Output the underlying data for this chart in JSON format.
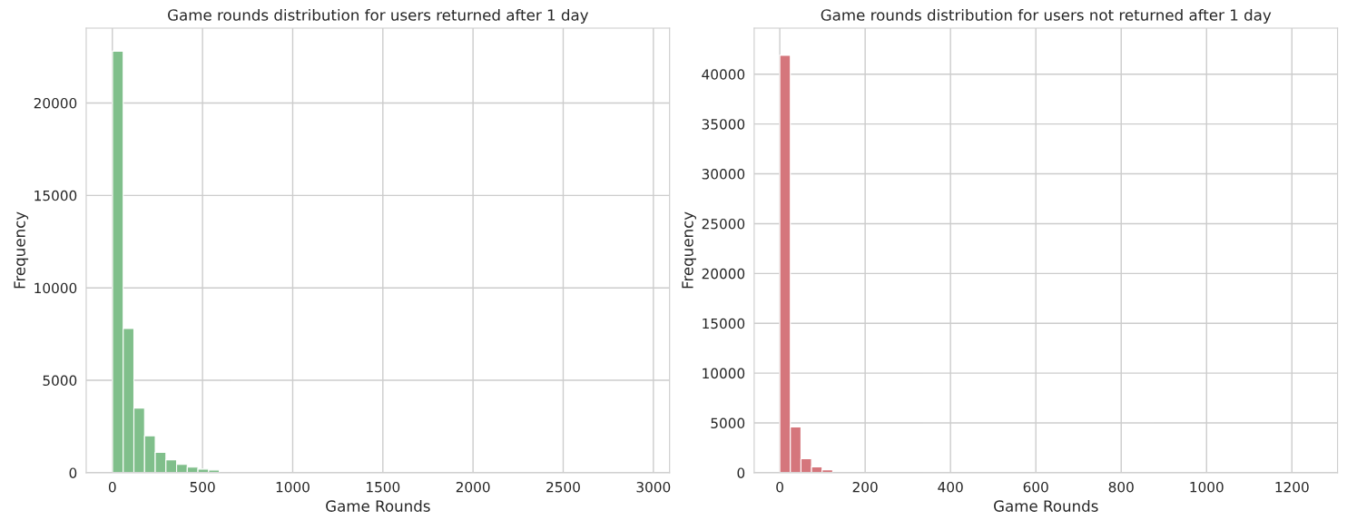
{
  "chart_data": [
    {
      "type": "histogram",
      "title": "Game rounds distribution for users returned after 1 day",
      "xlabel": "Game Rounds",
      "ylabel": "Frequency",
      "color": "#80bf8b",
      "bins": [
        1,
        60.2,
        119.4,
        178.6,
        237.8,
        297,
        356.2,
        415.4,
        474.6,
        533.8,
        593,
        652.2,
        711.4,
        770.6,
        829.8,
        889,
        948.2,
        1007.4,
        1066.6,
        1125.8,
        1185,
        1244.2,
        1303.4,
        1362.6,
        1421.8,
        1481,
        1540.2,
        1599.4,
        1658.6,
        1717.8,
        1777,
        1836.2,
        1895.4,
        1954.6,
        2013.8,
        2073,
        2132.2,
        2191.4,
        2250.6,
        2309.8,
        2369,
        2428.2,
        2487.4,
        2546.6,
        2605.8,
        2665,
        2724.2,
        2783.4,
        2842.6,
        2901.8,
        2961
      ],
      "values": [
        22800,
        7800,
        3500,
        2000,
        1100,
        700,
        450,
        300,
        200,
        150,
        null,
        null,
        0,
        0,
        0,
        0,
        0,
        0,
        0,
        0,
        0,
        0,
        0,
        0,
        0,
        0,
        0,
        0,
        0,
        0,
        0,
        0,
        0,
        0,
        0,
        0,
        0,
        0,
        0,
        0,
        0,
        0,
        0,
        0,
        0,
        0,
        0,
        0,
        0,
        0
      ],
      "xlim": [
        -145,
        3090
      ],
      "ylim": [
        0,
        24050
      ],
      "xticks": [
        0,
        500,
        1000,
        1500,
        2000,
        2500,
        3000
      ],
      "yticks": [
        0,
        5000,
        10000,
        15000,
        20000
      ],
      "grid": true
    },
    {
      "type": "histogram",
      "title": "Game rounds distribution for users not returned after 1 day",
      "xlabel": "Game Rounds",
      "ylabel": "Frequency",
      "color": "#d5767c",
      "bins": [
        0,
        24.8,
        49.6,
        74.4,
        99.2,
        124,
        148.8,
        173.6,
        198.4,
        223.2,
        248,
        272.8,
        297.6,
        322.4,
        347.2,
        372,
        396.8,
        421.6,
        446.4,
        471.2,
        496,
        520.8,
        545.6,
        570.4,
        595.2,
        620,
        644.8,
        669.6,
        694.4,
        719.2,
        744,
        768.8,
        793.6,
        818.4,
        843.2,
        868,
        892.8,
        917.6,
        942.4,
        967.2,
        992,
        1016.8,
        1041.6,
        1066.4,
        1091.2,
        1116,
        1140.8,
        1165.6,
        1190.4,
        1215.2,
        1240
      ],
      "values": [
        41900,
        4600,
        1400,
        600,
        300,
        null,
        null,
        0,
        0,
        0,
        0,
        0,
        0,
        0,
        0,
        0,
        0,
        0,
        0,
        0,
        0,
        0,
        0,
        0,
        0,
        0,
        0,
        0,
        0,
        0,
        0,
        0,
        0,
        0,
        0,
        0,
        0,
        0,
        0,
        0,
        0,
        0,
        0,
        0,
        0,
        0,
        0,
        0,
        0,
        0
      ],
      "xlim": [
        -60,
        1307
      ],
      "ylim": [
        0,
        44630
      ],
      "xticks": [
        0,
        200,
        400,
        600,
        800,
        1000,
        1200
      ],
      "yticks": [
        0,
        5000,
        10000,
        15000,
        20000,
        25000,
        30000,
        35000,
        40000
      ],
      "grid": true
    }
  ]
}
